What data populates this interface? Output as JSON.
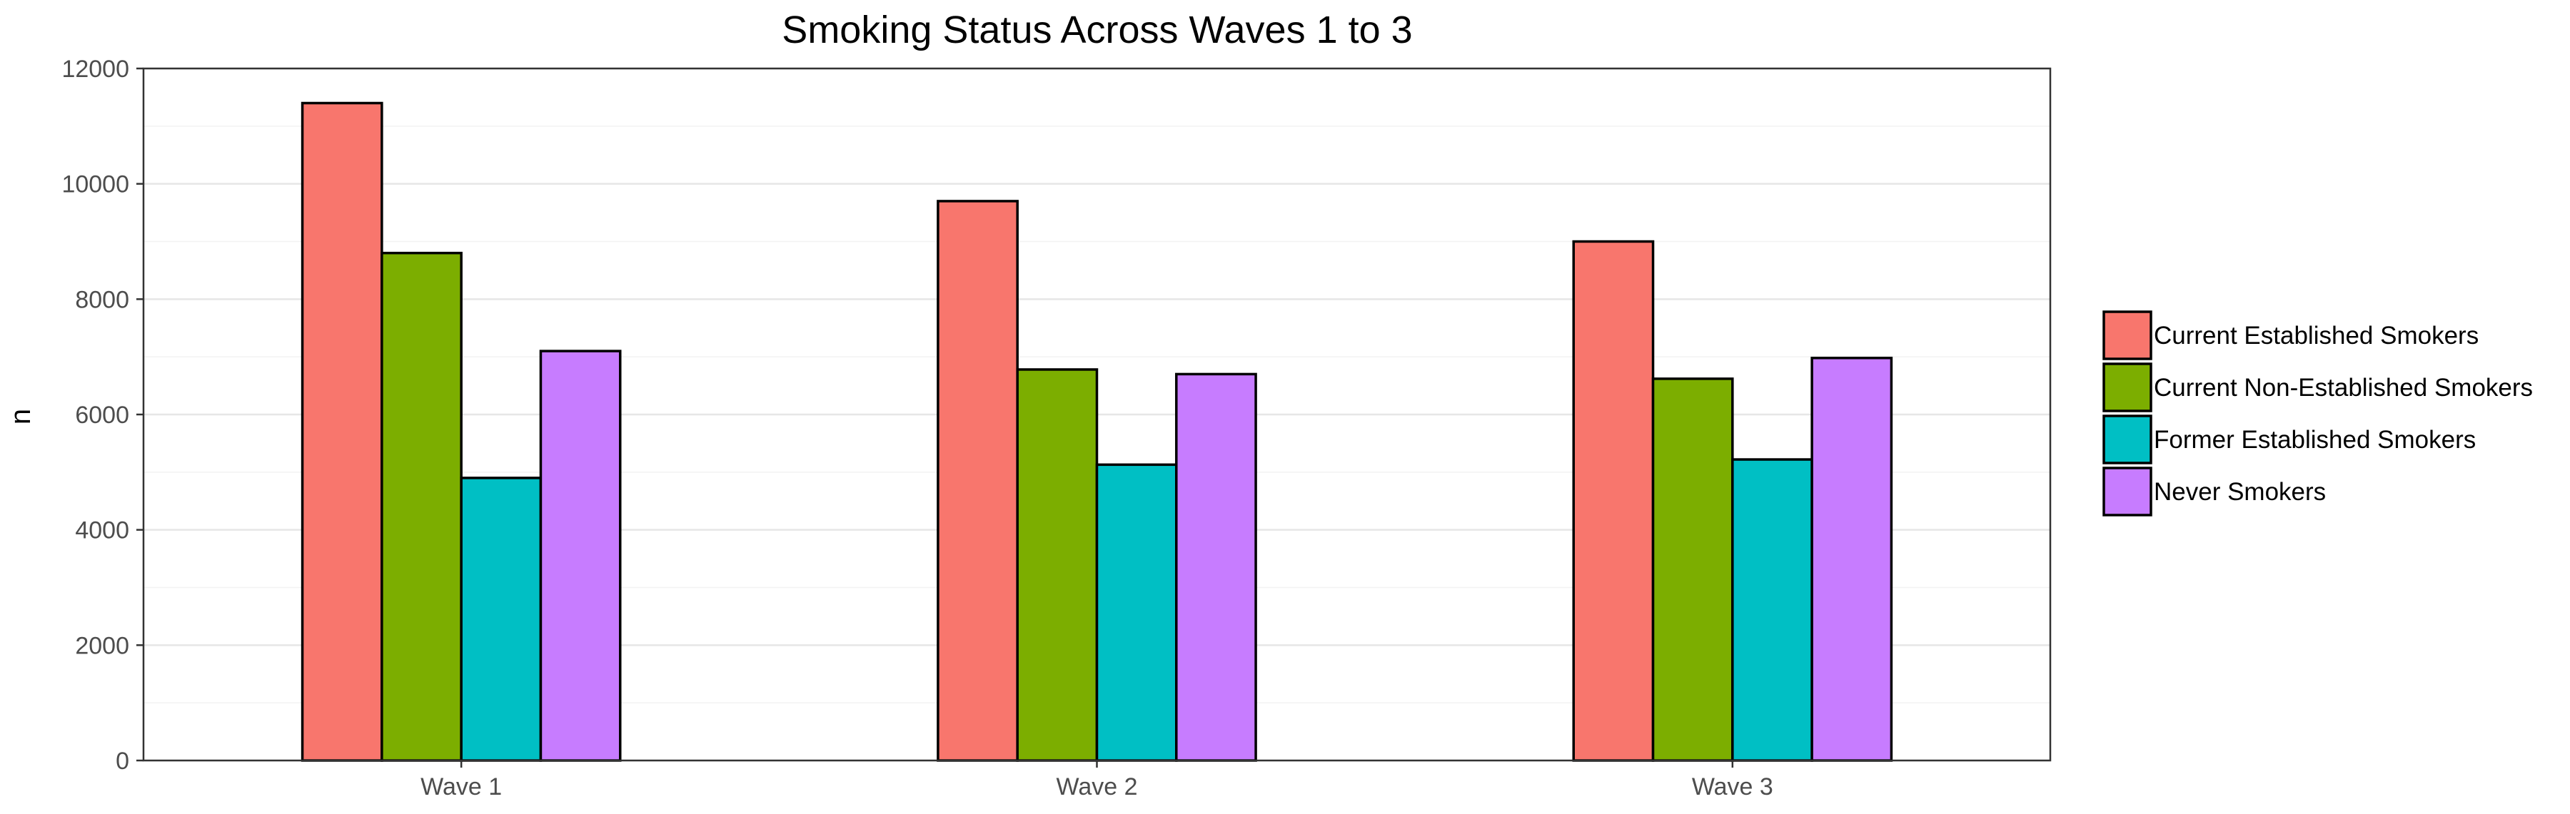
{
  "chart_data": {
    "type": "bar",
    "title": "Smoking Status Across Waves 1 to 3",
    "xlabel": "",
    "ylabel": "n",
    "categories": [
      "Wave 1",
      "Wave 2",
      "Wave 3"
    ],
    "ylim": [
      0,
      12000
    ],
    "yticks": [
      "0",
      "2000",
      "4000",
      "6000",
      "8000",
      "10000",
      "12000"
    ],
    "grid": true,
    "legend_position": "right",
    "series": [
      {
        "name": "Current Established Smokers",
        "color": "#F8766D",
        "values": [
          11400,
          9700,
          9000
        ]
      },
      {
        "name": "Current Non-Established Smokers",
        "color": "#7CAE00",
        "values": [
          8800,
          6780,
          6620
        ]
      },
      {
        "name": "Former Established Smokers",
        "color": "#00BFC4",
        "values": [
          4900,
          5130,
          5220
        ]
      },
      {
        "name": "Never Smokers",
        "color": "#C77CFF",
        "values": [
          7100,
          6700,
          6980
        ]
      }
    ]
  }
}
